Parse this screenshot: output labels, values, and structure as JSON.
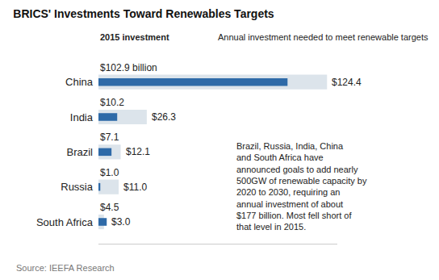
{
  "chart_data": {
    "type": "bar",
    "title": "BRICS' Investments Toward Renewables Targets",
    "categories": [
      "China",
      "India",
      "Brazil",
      "Russia",
      "South Africa"
    ],
    "series": [
      {
        "name": "Annual investment needed to meet renewable targets",
        "color": "#dce4eb",
        "values": [
          124.4,
          26.3,
          12.1,
          11.0,
          3.0
        ],
        "value_labels": [
          "$124.4",
          "$26.3",
          "$12.1",
          "$11.0",
          "$3.0"
        ]
      },
      {
        "name": "2015 investment",
        "color": "#2e6aa8",
        "values": [
          102.9,
          10.2,
          7.1,
          1.0,
          4.5
        ],
        "value_labels": [
          "$102.9 billion",
          "$10.2",
          "$7.1",
          "$1.0",
          "$4.5"
        ]
      }
    ],
    "orientation": "horizontal",
    "data_labels": true,
    "tick_labels": "y",
    "grid": false,
    "xlim": [
      0,
      130
    ],
    "annotations": [
      [
        "Brazil, Russia, India, China",
        "and South Africa have",
        "announced goals to add nearly",
        "500GW of renewable capacity by",
        "2020 to 2030, requiring an",
        "annual investment of about",
        "$177 billion. Most fell short of",
        "that level in 2015."
      ]
    ],
    "source": "Source: IEEFA Research"
  }
}
